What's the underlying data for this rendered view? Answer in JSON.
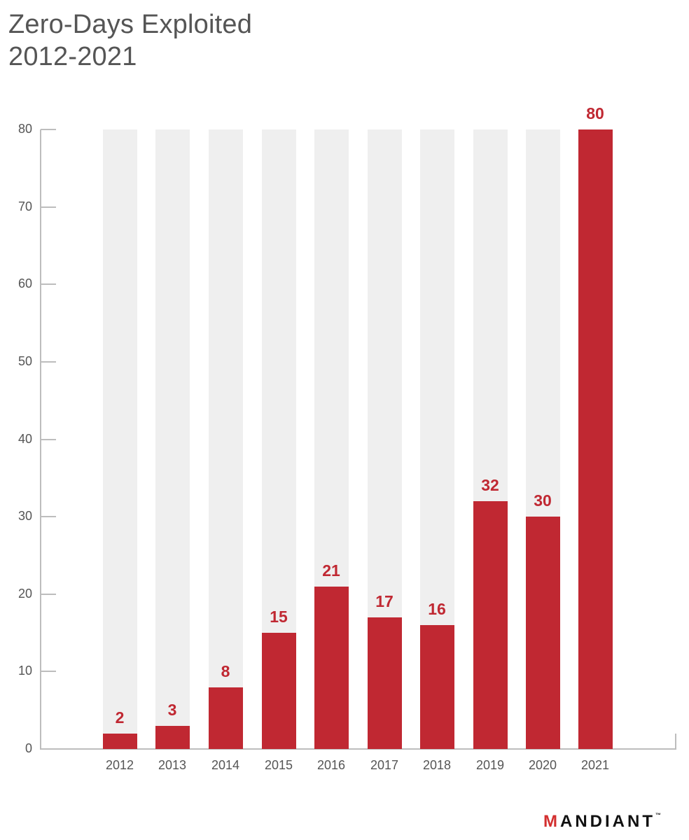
{
  "title": {
    "line1": "Zero-Days Exploited",
    "line2": "2012-2021"
  },
  "brand": {
    "logo_first": "M",
    "logo_rest": "ANDIANT",
    "trademark": "™"
  },
  "colors": {
    "bar": "#c02832",
    "bar_background": "#efefef",
    "axis": "#bdbdbd",
    "text": "#555555"
  },
  "chart_data": {
    "type": "bar",
    "title": "Zero-Days Exploited 2012-2021",
    "xlabel": "",
    "ylabel": "",
    "categories": [
      "2012",
      "2013",
      "2014",
      "2015",
      "2016",
      "2017",
      "2018",
      "2019",
      "2020",
      "2021"
    ],
    "values": [
      2,
      3,
      8,
      15,
      21,
      17,
      16,
      32,
      30,
      80
    ],
    "ylim": [
      0,
      80
    ],
    "yticks": [
      0,
      10,
      20,
      30,
      40,
      50,
      60,
      70,
      80
    ],
    "grid": false,
    "legend": null,
    "data_labels": true
  }
}
